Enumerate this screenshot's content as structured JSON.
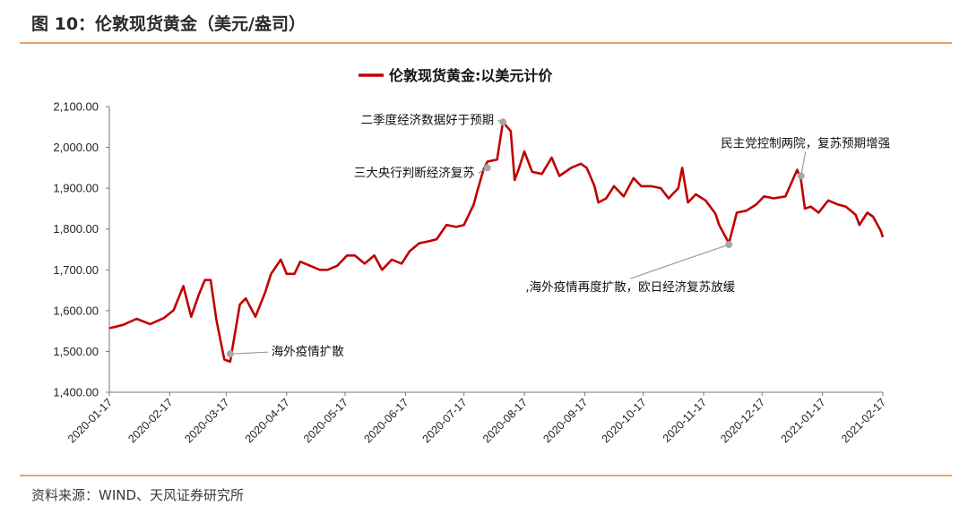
{
  "header": {
    "title": "图 10：伦敦现货黄金（美元/盎司）"
  },
  "footer": {
    "source": "资料来源：WIND、天风证券研究所"
  },
  "chart_data": {
    "type": "line",
    "title": "",
    "xlabel": "",
    "ylabel": "",
    "ylim": [
      1400,
      2100
    ],
    "grid": false,
    "legend_position": "top-center",
    "y_ticks": [
      "1,400.00",
      "1,500.00",
      "1,600.00",
      "1,700.00",
      "1,800.00",
      "1,900.00",
      "2,000.00",
      "2,100.00"
    ],
    "x_ticks": [
      "2020-01-17",
      "2020-02-17",
      "2020-03-17",
      "2020-04-17",
      "2020-05-17",
      "2020-06-17",
      "2020-07-17",
      "2020-08-17",
      "2020-09-17",
      "2020-10-17",
      "2020-11-17",
      "2020-12-17",
      "2021-01-17",
      "2021-02-17"
    ],
    "x_range": [
      "2020-01-17",
      "2021-02-17"
    ],
    "series": [
      {
        "name": "伦敦现货黄金:以美元计价",
        "color": "#c00000",
        "x": [
          "2020-01-17",
          "2020-01-24",
          "2020-01-31",
          "2020-02-07",
          "2020-02-14",
          "2020-02-19",
          "2020-02-24",
          "2020-02-28",
          "2020-03-03",
          "2020-03-06",
          "2020-03-09",
          "2020-03-12",
          "2020-03-16",
          "2020-03-19",
          "2020-03-24",
          "2020-03-27",
          "2020-04-01",
          "2020-04-06",
          "2020-04-09",
          "2020-04-14",
          "2020-04-17",
          "2020-04-21",
          "2020-04-24",
          "2020-04-29",
          "2020-05-04",
          "2020-05-08",
          "2020-05-13",
          "2020-05-18",
          "2020-05-22",
          "2020-05-27",
          "2020-06-01",
          "2020-06-05",
          "2020-06-10",
          "2020-06-15",
          "2020-06-19",
          "2020-06-24",
          "2020-06-29",
          "2020-07-03",
          "2020-07-08",
          "2020-07-13",
          "2020-07-17",
          "2020-07-22",
          "2020-07-24",
          "2020-07-27",
          "2020-07-29",
          "2020-08-03",
          "2020-08-06",
          "2020-08-10",
          "2020-08-12",
          "2020-08-14",
          "2020-08-17",
          "2020-08-21",
          "2020-08-26",
          "2020-08-31",
          "2020-09-04",
          "2020-09-10",
          "2020-09-15",
          "2020-09-18",
          "2020-09-22",
          "2020-09-24",
          "2020-09-28",
          "2020-10-02",
          "2020-10-07",
          "2020-10-12",
          "2020-10-16",
          "2020-10-21",
          "2020-10-26",
          "2020-10-30",
          "2020-11-04",
          "2020-11-06",
          "2020-11-09",
          "2020-11-13",
          "2020-11-18",
          "2020-11-23",
          "2020-11-25",
          "2020-11-30",
          "2020-12-04",
          "2020-12-09",
          "2020-12-14",
          "2020-12-18",
          "2020-12-23",
          "2020-12-29",
          "2021-01-04",
          "2021-01-06",
          "2021-01-08",
          "2021-01-11",
          "2021-01-15",
          "2021-01-20",
          "2021-01-25",
          "2021-01-29",
          "2021-02-03",
          "2021-02-05",
          "2021-02-09",
          "2021-02-12",
          "2021-02-16",
          "2021-02-17"
        ],
        "values": [
          1557,
          1565,
          1580,
          1567,
          1582,
          1601,
          1660,
          1585,
          1640,
          1675,
          1675,
          1575,
          1480,
          1475,
          1615,
          1630,
          1585,
          1645,
          1690,
          1725,
          1690,
          1690,
          1720,
          1710,
          1700,
          1700,
          1710,
          1735,
          1735,
          1715,
          1735,
          1700,
          1725,
          1715,
          1745,
          1765,
          1770,
          1775,
          1810,
          1805,
          1810,
          1860,
          1895,
          1945,
          1965,
          1970,
          2062,
          2040,
          1920,
          1945,
          1990,
          1940,
          1935,
          1975,
          1930,
          1950,
          1960,
          1950,
          1905,
          1865,
          1875,
          1905,
          1880,
          1925,
          1905,
          1905,
          1900,
          1875,
          1900,
          1950,
          1865,
          1885,
          1870,
          1838,
          1810,
          1765,
          1840,
          1845,
          1860,
          1880,
          1875,
          1880,
          1945,
          1920,
          1850,
          1855,
          1840,
          1870,
          1860,
          1855,
          1835,
          1810,
          1840,
          1830,
          1795,
          1780
        ]
      }
    ],
    "annotations": [
      {
        "text": "二季度经济数据好于预期",
        "x": "2020-08-06",
        "y": 2062
      },
      {
        "text": "三大央行判断经济复苏",
        "x": "2020-07-29",
        "y": 1950
      },
      {
        "text": "民主党控制两院，复苏预期增强",
        "x": "2021-01-06",
        "y": 1930
      },
      {
        "text": ",海外疫情再度扩散，欧日经济复苏放缓",
        "x": "2020-11-30",
        "y": 1762
      },
      {
        "text": "海外疫情扩散",
        "x": "2020-03-19",
        "y": 1494
      }
    ]
  }
}
